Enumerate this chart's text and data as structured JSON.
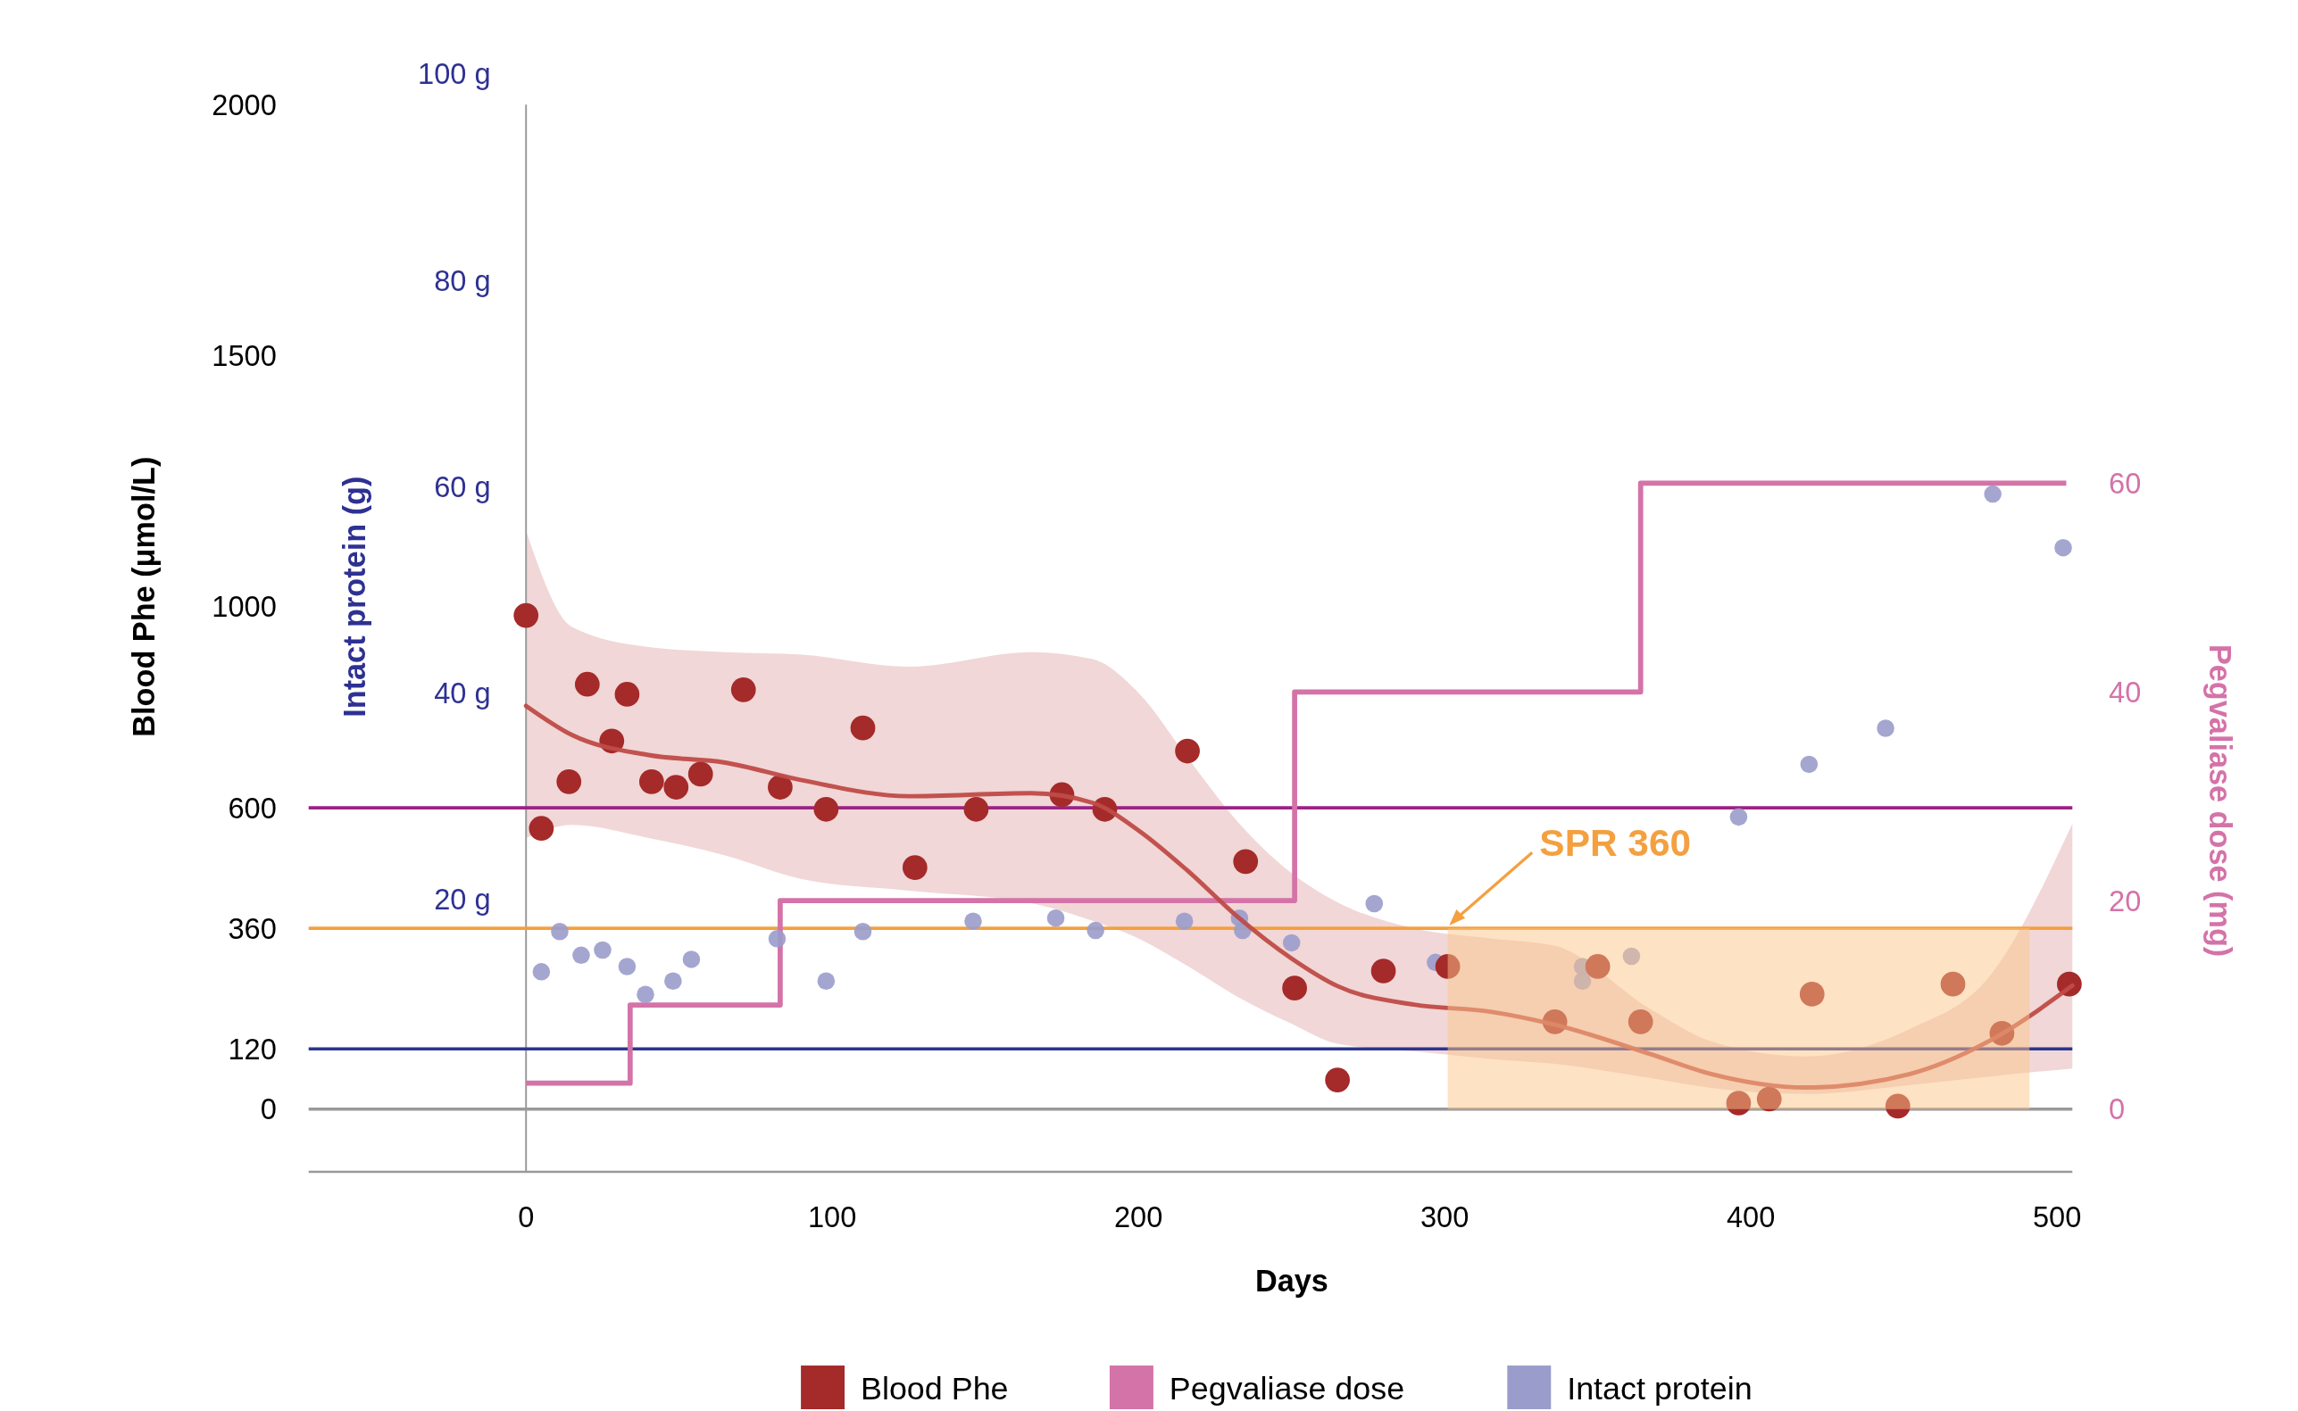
{
  "chart_data": {
    "type": "scatter",
    "xlabel": "Days",
    "ylabel": "Blood Phe (μmol/L)",
    "y2label": "Intact protein (g)",
    "y3label": "Pegvaliase dose (mg)",
    "xlim": [
      -71,
      505
    ],
    "xticks": [
      0,
      100,
      200,
      300,
      400,
      500
    ],
    "ylim": [
      -125,
      2000
    ],
    "yticks": [
      0,
      120,
      360,
      600,
      1000,
      1500,
      2000
    ],
    "y2lim": [
      -6.4,
      100
    ],
    "y2ticks": [
      {
        "value": 20,
        "label": "20 g"
      },
      {
        "value": 40,
        "label": "40 g"
      },
      {
        "value": 60,
        "label": "60 g"
      },
      {
        "value": 80,
        "label": "80 g"
      },
      {
        "value": 100,
        "label": "100 g"
      }
    ],
    "y3lim": [
      -6,
      60
    ],
    "y3ticks": [
      0,
      20,
      40,
      60
    ],
    "legend": "bottom",
    "series": [
      {
        "name": "Blood Phe",
        "color": "#a52a2a",
        "x": [
          0,
          5,
          14,
          20,
          28,
          33,
          41,
          49,
          57,
          71,
          83,
          98,
          110,
          127,
          147,
          175,
          189,
          216,
          235,
          251,
          265,
          280,
          301,
          336,
          350,
          364,
          396,
          406,
          420,
          448,
          466,
          482,
          504
        ],
        "values": [
          983,
          559,
          652,
          846,
          733,
          826,
          652,
          641,
          667,
          835,
          641,
          597,
          759,
          481,
          597,
          626,
          597,
          713,
          493,
          241,
          58,
          275,
          284,
          174,
          284,
          174,
          12,
          20,
          229,
          6,
          249,
          151,
          249
        ]
      },
      {
        "type": "line",
        "color": "#bf4b47",
        "x": [
          0,
          15,
          40,
          65,
          90,
          125,
          165,
          185,
          200,
          216,
          232,
          250,
          265,
          290,
          315,
          336,
          367,
          387,
          418,
          452,
          478,
          505
        ],
        "values": [
          803,
          745,
          705,
          690,
          655,
          623,
          629,
          610,
          555,
          475,
          385,
          300,
          245,
          208,
          194,
          168,
          110,
          70,
          43,
          70,
          136,
          246
        ],
        "lower": [
          540,
          566,
          540,
          505,
          458,
          435,
          410,
          375,
          340,
          285,
          225,
          170,
          130,
          115,
          100,
          90,
          62,
          42,
          30,
          48,
          65,
          81
        ],
        "upper": [
          1151,
          960,
          920,
          910,
          905,
          881,
          910,
          896,
          829,
          700,
          575,
          470,
          412,
          360,
          340,
          325,
          200,
          135,
          105,
          160,
          265,
          568
        ]
      },
      {
        "name": "Pegvaliase dose",
        "type": "step",
        "axis": "y3",
        "color": "#d473a8",
        "x": [
          0,
          34,
          83,
          251,
          364,
          503
        ],
        "values": [
          2.5,
          10,
          20,
          40,
          60,
          60
        ]
      },
      {
        "name": "Intact protein",
        "axis": "y2",
        "color": "#9a9ccb",
        "x": [
          5,
          11,
          18,
          25,
          33,
          39,
          48,
          54,
          82,
          98,
          110,
          146,
          173,
          186,
          215,
          233,
          234,
          250,
          277,
          297,
          345,
          345,
          361,
          396,
          419,
          444,
          479,
          502
        ],
        "values": [
          13,
          16.9,
          14.6,
          15.1,
          13.5,
          10.8,
          12.1,
          14.2,
          16.2,
          12.1,
          16.9,
          17.9,
          18.2,
          17,
          17.9,
          18.2,
          17,
          15.8,
          19.6,
          13.9,
          13.5,
          12.1,
          14.5,
          28,
          33.1,
          36.6,
          59.3,
          54.1
        ]
      }
    ],
    "ref_lines": [
      {
        "axis": "y",
        "value": 0,
        "color": "#9a9a9a"
      },
      {
        "axis": "y",
        "value": 600,
        "color": "#9b2385"
      },
      {
        "axis": "y",
        "value": 360,
        "color": "#f4a040"
      },
      {
        "axis": "y",
        "value": 120,
        "color": "#2b3590"
      }
    ],
    "bands": [
      {
        "axis": "x",
        "from": 301,
        "to": 491,
        "color": "#fbc58a"
      }
    ],
    "annotations": [
      "SPR 360"
    ]
  }
}
